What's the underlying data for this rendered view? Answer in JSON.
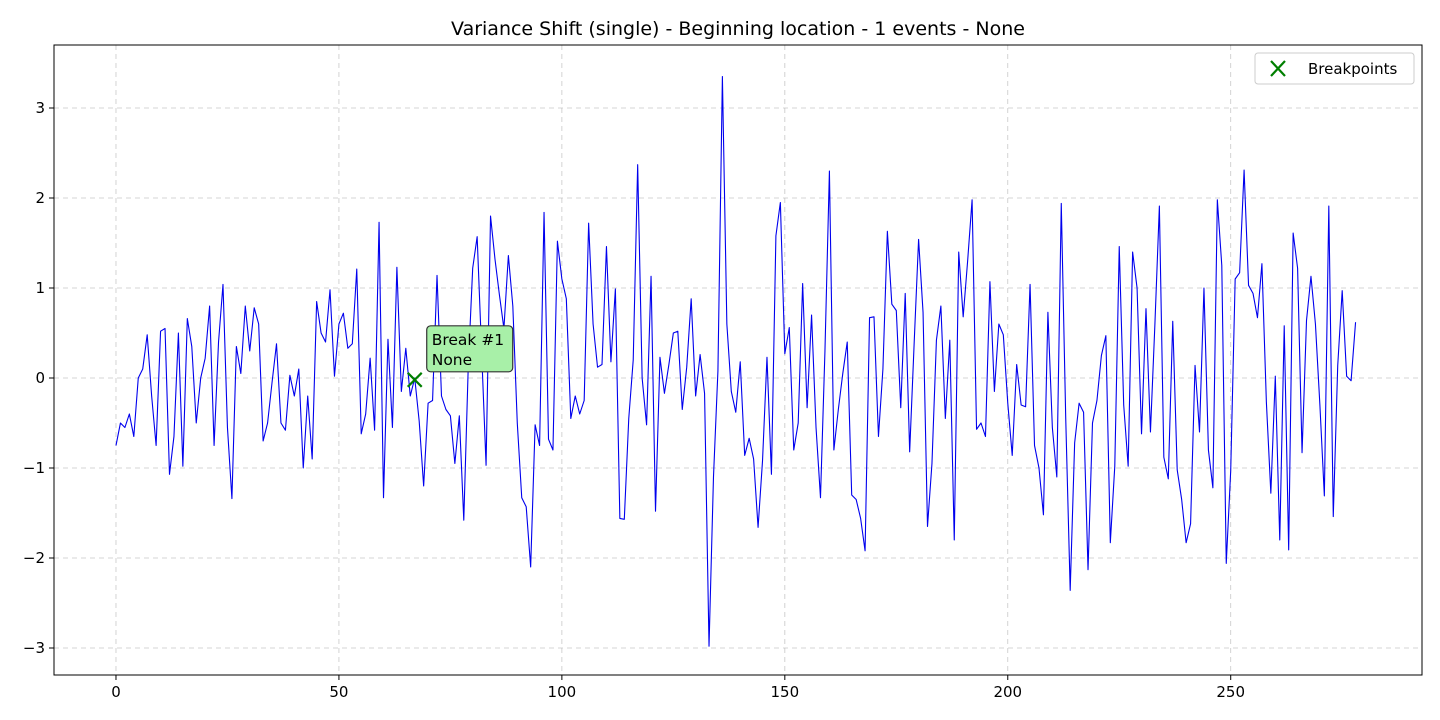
{
  "chart_data": {
    "type": "line",
    "title": "Variance Shift (single) - Beginning location - 1 events - None",
    "xlabel": "",
    "ylabel": "",
    "xlim": [
      -13.9,
      292.9
    ],
    "ylim": [
      -3.3,
      3.7
    ],
    "xticks": [
      0,
      50,
      100,
      150,
      200,
      250
    ],
    "yticks": [
      -3,
      -2,
      -1,
      0,
      1,
      2,
      3
    ],
    "grid": true,
    "legend": {
      "placement": "upper right",
      "entries": [
        "Breakpoints"
      ]
    },
    "series": [
      {
        "color": "#0000ee",
        "values": [
          -0.75,
          -0.5,
          -0.55,
          -0.4,
          -0.65,
          0.0,
          0.1,
          0.48,
          -0.2,
          -0.75,
          0.52,
          0.55,
          -1.07,
          -0.65,
          0.5,
          -0.98,
          0.66,
          0.35,
          -0.5,
          0.0,
          0.22,
          0.8,
          -0.75,
          0.4,
          1.04,
          -0.55,
          -1.34,
          0.35,
          0.05,
          0.8,
          0.3,
          0.78,
          0.6,
          -0.7,
          -0.5,
          -0.05,
          0.38,
          -0.5,
          -0.58,
          0.03,
          -0.2,
          0.1,
          -1.0,
          -0.2,
          -0.9,
          0.85,
          0.5,
          0.4,
          0.98,
          0.02,
          0.6,
          0.72,
          0.33,
          0.38,
          1.21,
          -0.62,
          -0.4,
          0.22,
          -0.58,
          1.73,
          -1.33,
          0.43,
          -0.55,
          1.23,
          -0.15,
          0.33,
          -0.2,
          0.0,
          -0.48,
          -1.2,
          -0.28,
          -0.25,
          1.14,
          -0.2,
          -0.35,
          -0.42,
          -0.95,
          -0.42,
          -1.58,
          0.12,
          1.22,
          1.57,
          0.3,
          -0.97,
          1.8,
          1.32,
          0.92,
          0.55,
          1.36,
          0.8,
          -0.5,
          -1.33,
          -1.43,
          -2.1,
          -0.52,
          -0.75,
          1.84,
          -0.68,
          -0.8,
          1.52,
          1.1,
          0.88,
          -0.45,
          -0.2,
          -0.4,
          -0.25,
          1.72,
          0.6,
          0.12,
          0.15,
          1.46,
          0.18,
          0.99,
          -1.56,
          -1.57,
          -0.45,
          0.2,
          2.37,
          0.0,
          -0.52,
          1.13,
          -1.48,
          0.23,
          -0.17,
          0.15,
          0.5,
          0.52,
          -0.35,
          0.12,
          0.88,
          -0.2,
          0.26,
          -0.17,
          -2.98,
          -1.1,
          0.08,
          3.35,
          0.6,
          -0.15,
          -0.38,
          0.18,
          -0.86,
          -0.67,
          -0.9,
          -1.66,
          -0.92,
          0.23,
          -1.07,
          1.58,
          1.95,
          0.27,
          0.56,
          -0.8,
          -0.5,
          1.05,
          -0.33,
          0.7,
          -0.55,
          -1.33,
          0.3,
          2.3,
          -0.8,
          -0.35,
          0.05,
          0.4,
          -1.3,
          -1.35,
          -1.56,
          -1.92,
          0.67,
          0.68,
          -0.65,
          0.1,
          1.63,
          0.82,
          0.75,
          -0.33,
          0.94,
          -0.82,
          0.38,
          1.54,
          0.73,
          -1.65,
          -0.95,
          0.42,
          0.8,
          -0.45,
          0.42,
          -1.8,
          1.4,
          0.68,
          1.3,
          1.98,
          -0.57,
          -0.5,
          -0.65,
          1.07,
          -0.15,
          0.6,
          0.48,
          -0.28,
          -0.86,
          0.15,
          -0.3,
          -0.32,
          1.04,
          -0.75,
          -1.0,
          -1.52,
          0.73,
          -0.55,
          -1.1,
          1.94,
          -0.45,
          -2.36,
          -0.72,
          -0.28,
          -0.38,
          -2.13,
          -0.5,
          -0.25,
          0.25,
          0.47,
          -1.83,
          -0.98,
          1.46,
          -0.3,
          -0.98,
          1.4,
          1.0,
          -0.62,
          0.77,
          -0.6,
          0.6,
          1.91,
          -0.88,
          -1.12,
          0.63,
          -1.02,
          -1.35,
          -1.83,
          -1.62,
          0.14,
          -0.6,
          1.0,
          -0.8,
          -1.22,
          1.98,
          1.25,
          -2.06,
          -1.03,
          1.1,
          1.17,
          2.31,
          1.03,
          0.94,
          0.67,
          1.27,
          -0.27,
          -1.28,
          0.02,
          -1.8,
          0.58,
          -1.91,
          1.61,
          1.22,
          -0.83,
          0.64,
          1.13,
          0.6,
          -0.3,
          -1.31,
          1.91,
          -1.54,
          0.14,
          0.97,
          0.02,
          -0.03,
          0.62
        ]
      }
    ],
    "breakpoints": [
      {
        "x": 67,
        "y": -0.02,
        "marker": "x",
        "color": "#007f00"
      }
    ],
    "annotations": [
      {
        "x": 67,
        "y": -0.02,
        "lines": [
          "Break #1",
          "None"
        ],
        "background": "#a8f0a8"
      }
    ]
  }
}
